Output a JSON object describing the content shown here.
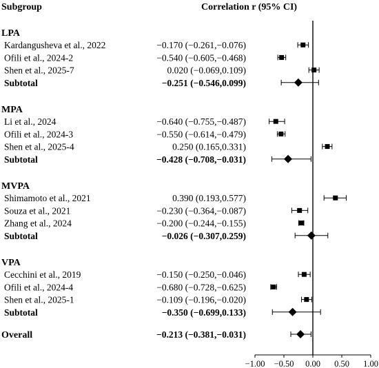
{
  "header": {
    "left": "Subgroup",
    "right": "Correlation r (95% CI)"
  },
  "chart_data": {
    "type": "forest",
    "xlim": [
      -1.0,
      1.0
    ],
    "xticks": [
      -1.0,
      -0.5,
      0.0,
      0.5,
      1.0
    ],
    "xtick_labels": [
      "−1.00",
      "−0.50",
      "0.00",
      "0.50",
      "1.00"
    ],
    "reference_line": 0.0,
    "colors": {
      "marker": "#000000",
      "line": "#000000"
    },
    "groups": [
      {
        "name": "LPA",
        "studies": [
          {
            "label": "Kardangusheva et al., 2022",
            "ci_text": "−0.170 (−0.261,−0.076)",
            "r": -0.17,
            "lo": -0.261,
            "hi": -0.076
          },
          {
            "label": "Ofili et al., 2024-2",
            "ci_text": "−0.540 (−0.605,−0.468)",
            "r": -0.54,
            "lo": -0.605,
            "hi": -0.468
          },
          {
            "label": "Shen et al., 2025-7",
            "ci_text": "0.020 (−0.069,0.109)",
            "r": 0.02,
            "lo": -0.069,
            "hi": 0.109
          }
        ],
        "subtotal": {
          "label": "Subtotal",
          "ci_text": "−0.251 (−0.546,0.099)",
          "r": -0.251,
          "lo": -0.546,
          "hi": 0.099
        }
      },
      {
        "name": "MPA",
        "studies": [
          {
            "label": "Li et al., 2024",
            "ci_text": "−0.640 (−0.755,−0.487)",
            "r": -0.64,
            "lo": -0.755,
            "hi": -0.487
          },
          {
            "label": "Ofili et al., 2024-3",
            "ci_text": "−0.550 (−0.614,−0.479)",
            "r": -0.55,
            "lo": -0.614,
            "hi": -0.479
          },
          {
            "label": "Shen et al., 2025-4",
            "ci_text": "0.250 (0.165,0.331)",
            "r": 0.25,
            "lo": 0.165,
            "hi": 0.331
          }
        ],
        "subtotal": {
          "label": "Subtotal",
          "ci_text": "−0.428 (−0.708,−0.031)",
          "r": -0.428,
          "lo": -0.708,
          "hi": -0.031
        }
      },
      {
        "name": "MVPA",
        "studies": [
          {
            "label": "Shimamoto et al., 2021",
            "ci_text": "0.390 (0.193,0.577)",
            "r": 0.39,
            "lo": 0.193,
            "hi": 0.577
          },
          {
            "label": "Souza et al., 2021",
            "ci_text": "−0.230 (−0.364,−0.087)",
            "r": -0.23,
            "lo": -0.364,
            "hi": -0.087
          },
          {
            "label": "Zhang et al., 2024",
            "ci_text": "−0.200 (−0.244,−0.155)",
            "r": -0.2,
            "lo": -0.244,
            "hi": -0.155
          }
        ],
        "subtotal": {
          "label": "Subtotal",
          "ci_text": "−0.026 (−0.307,0.259)",
          "r": -0.026,
          "lo": -0.307,
          "hi": 0.259
        }
      },
      {
        "name": "VPA",
        "studies": [
          {
            "label": "Cecchini et al., 2019",
            "ci_text": "−0.150 (−0.250,−0.046)",
            "r": -0.15,
            "lo": -0.25,
            "hi": -0.046
          },
          {
            "label": "Ofili et al., 2024-4",
            "ci_text": "−0.680 (−0.728,−0.625)",
            "r": -0.68,
            "lo": -0.728,
            "hi": -0.625
          },
          {
            "label": "Shen et al., 2025-1",
            "ci_text": "−0.109 (−0.196,−0.020)",
            "r": -0.109,
            "lo": -0.196,
            "hi": -0.02
          }
        ],
        "subtotal": {
          "label": "Subtotal",
          "ci_text": "−0.350 (−0.699,0.133)",
          "r": -0.35,
          "lo": -0.699,
          "hi": 0.133
        }
      }
    ],
    "overall": {
      "label": "Overall",
      "ci_text": "−0.213 (−0.381,−0.031)",
      "r": -0.213,
      "lo": -0.381,
      "hi": -0.031
    }
  }
}
